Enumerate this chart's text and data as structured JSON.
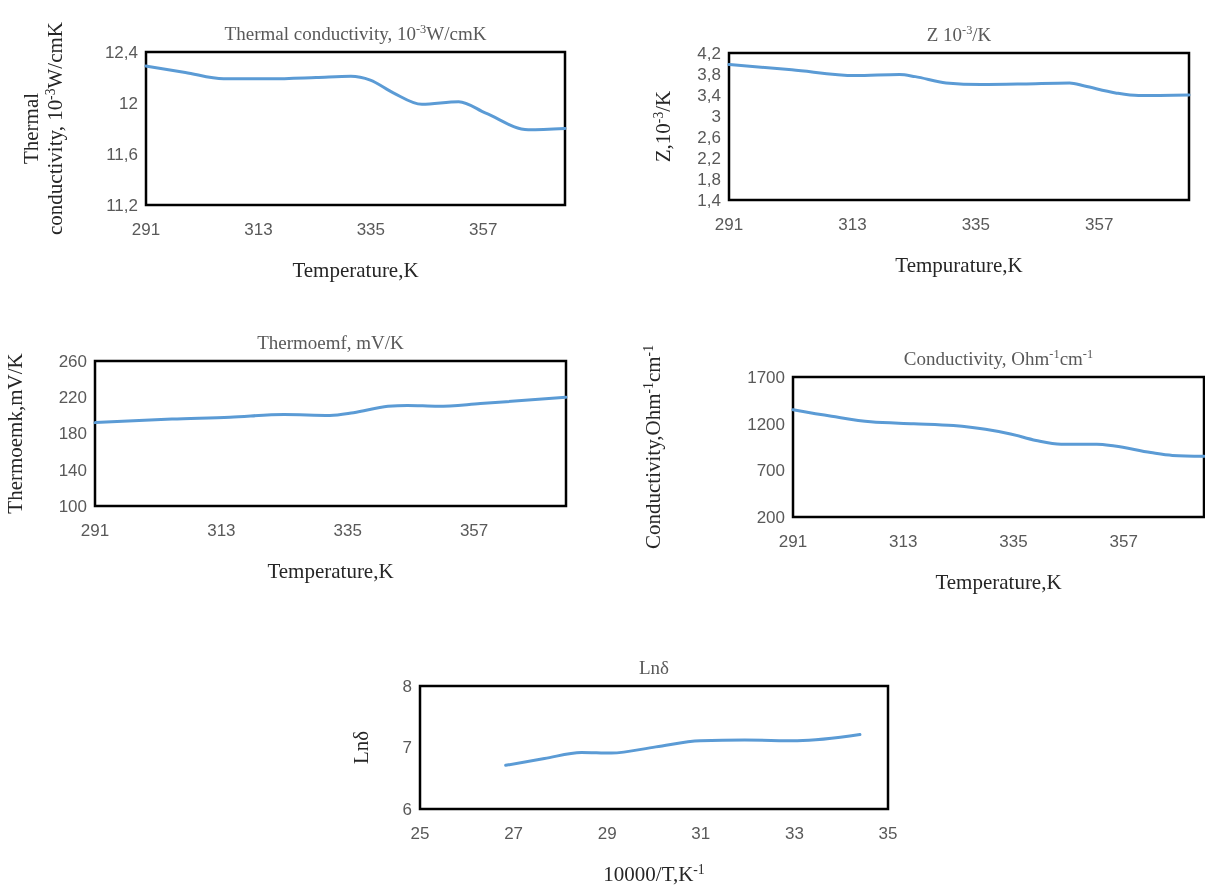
{
  "chart_data": [
    {
      "type": "line",
      "title": "Thermal conductivity, 10$^{-3}$W/cmK",
      "xlabel": "Temperature,K",
      "ylabel": "Thermal conductivity, 10$^{-3}$W/cmK",
      "xlim": [
        291,
        373
      ],
      "xticks": [
        291,
        313,
        335,
        357
      ],
      "ylim": [
        11.2,
        12.4
      ],
      "yticks": [
        {
          "value": 11.2,
          "label": "11,2"
        },
        {
          "value": 11.6,
          "label": "11,6"
        },
        12,
        {
          "value": 12.4,
          "label": "12,4"
        }
      ],
      "series": [
        {
          "color": "#5b9bd5",
          "x": [
            291,
            298.7,
            306.2,
            315.3,
            324.3,
            331.1,
            334.9,
            339.4,
            345,
            352.2,
            357.5,
            365.8,
            373
          ],
          "values": [
            12.29,
            12.24,
            12.19,
            12.19,
            12.2,
            12.21,
            12.18,
            12.08,
            11.99,
            12.01,
            11.92,
            11.79,
            11.8
          ]
        }
      ]
    },
    {
      "type": "line",
      "title": "Z 10$^{-3}$/K",
      "xlabel": "Tempurature,K",
      "ylabel": "Z,10$^{-3}$/K",
      "xlim": [
        291,
        373
      ],
      "xticks": [
        291,
        313,
        335,
        357
      ],
      "ylim": [
        1.4,
        4.2
      ],
      "yticks": [
        {
          "value": 1.4,
          "label": "1,4"
        },
        {
          "value": 1.8,
          "label": "1,8"
        },
        {
          "value": 2.2,
          "label": "2,2"
        },
        {
          "value": 2.6,
          "label": "2,6"
        },
        3,
        {
          "value": 3.4,
          "label": "3,4"
        },
        {
          "value": 3.8,
          "label": "3,8"
        },
        {
          "value": 4.2,
          "label": "4,2"
        }
      ],
      "series": [
        {
          "color": "#5b9bd5",
          "x": [
            291,
            302.2,
            313.5,
            321.4,
            324.2,
            329.7,
            335.9,
            343.4,
            351.7,
            354.4,
            359.9,
            364,
            373
          ],
          "values": [
            3.98,
            3.88,
            3.77,
            3.79,
            3.75,
            3.63,
            3.6,
            3.61,
            3.63,
            3.57,
            3.44,
            3.39,
            3.4
          ]
        }
      ]
    },
    {
      "type": "line",
      "title": "Thermoemf, mV/K",
      "xlabel": "Temperature,K",
      "ylabel": "Thermoemk,mV/K",
      "xlim": [
        291,
        373
      ],
      "xticks": [
        291,
        313,
        335,
        357
      ],
      "ylim": [
        100,
        260
      ],
      "yticks": [
        100,
        140,
        180,
        220,
        260
      ],
      "series": [
        {
          "color": "#5b9bd5",
          "x": [
            291,
            304.4,
            314.5,
            323.9,
            331.9,
            336,
            342,
            345.4,
            350.7,
            358.1,
            373
          ],
          "values": [
            192,
            196,
            198,
            201,
            200,
            203,
            210,
            211,
            210,
            213,
            220
          ]
        }
      ]
    },
    {
      "type": "line",
      "title": "Conductivity, Ohm$^{-1}$cm$^{-1}$",
      "xlabel": "Temperature,K",
      "ylabel": "Conductivity,Ohm$^{-1}$cm$^{-1}$",
      "xlim": [
        291,
        373
      ],
      "xticks": [
        291,
        313,
        335,
        357
      ],
      "ylim": [
        200,
        1700
      ],
      "yticks": [
        200,
        700,
        1200,
        1700
      ],
      "series": [
        {
          "color": "#5b9bd5",
          "x": [
            291,
            298.7,
            306.5,
            315.1,
            323,
            329.4,
            334.4,
            339.5,
            344.5,
            351.6,
            355.2,
            362.4,
            366.7,
            373
          ],
          "values": [
            1350,
            1280,
            1220,
            1200,
            1180,
            1140,
            1090,
            1020,
            980,
            980,
            960,
            890,
            860,
            850
          ]
        }
      ]
    },
    {
      "type": "line",
      "title": "Lnδ",
      "xlabel": "10000/T,K$^{-1}$",
      "ylabel": "Lnδ",
      "xlim": [
        25,
        35
      ],
      "xticks": [
        25,
        27,
        29,
        31,
        33,
        35
      ],
      "ylim": [
        6,
        8
      ],
      "yticks": [
        6,
        7,
        8
      ],
      "series": [
        {
          "color": "#5b9bd5",
          "x": [
            26.83,
            27.66,
            28.45,
            29.09,
            30.04,
            30.99,
            31.94,
            33.06,
            34.4
          ],
          "values": [
            6.71,
            6.82,
            6.92,
            6.91,
            7.01,
            7.11,
            7.12,
            7.11,
            7.21
          ]
        }
      ]
    }
  ]
}
